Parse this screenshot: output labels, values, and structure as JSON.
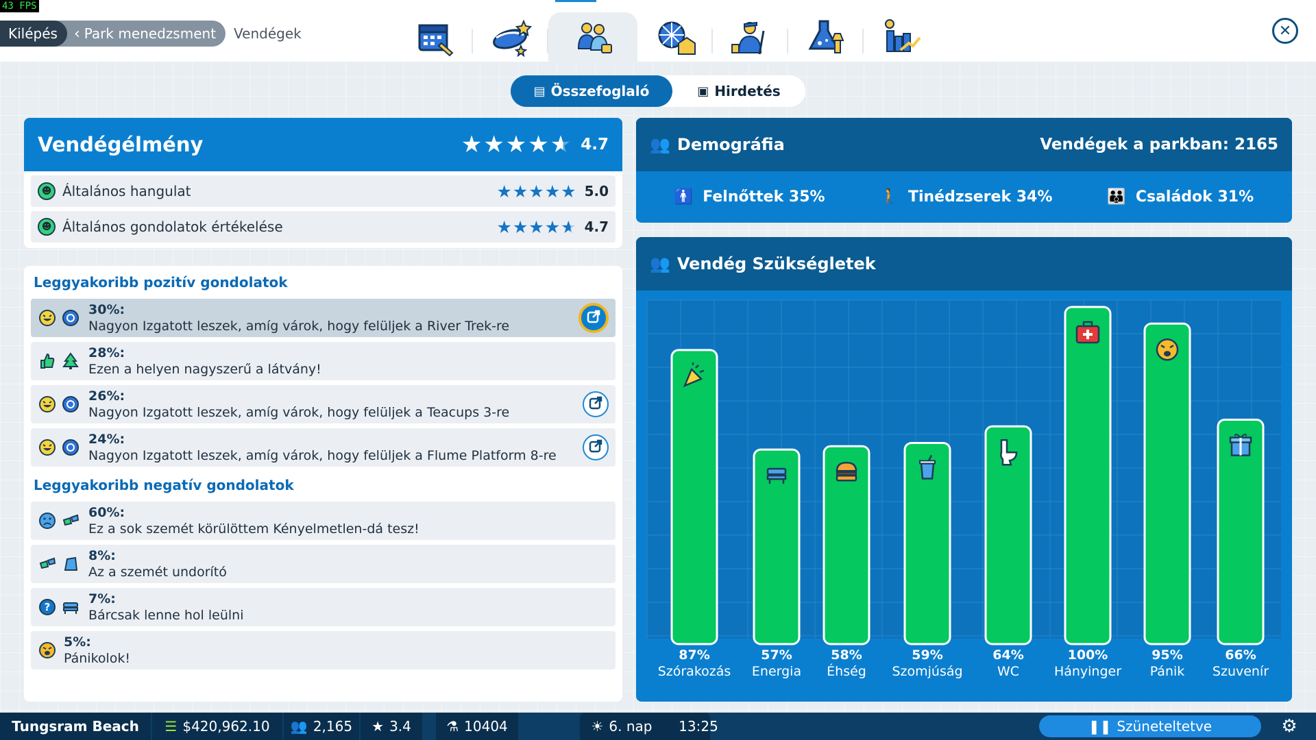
{
  "fps": "43 FPS",
  "breadcrumb": {
    "exit": "Kilépés",
    "park": "Park menedzsment",
    "current": "Vendégek"
  },
  "tabs": [
    {
      "icon": "calendar-icon"
    },
    {
      "icon": "ride-icon"
    },
    {
      "icon": "guests-icon",
      "active": true
    },
    {
      "icon": "ferris-wheel-icon"
    },
    {
      "icon": "staff-icon"
    },
    {
      "icon": "research-icon"
    },
    {
      "icon": "stats-icon"
    }
  ],
  "segment": {
    "summary": "Összefoglaló",
    "ads": "Hirdetés"
  },
  "experience": {
    "title": "Vendégélmény",
    "rating": "4.7",
    "rows": [
      {
        "label": "Általános hangulat",
        "rating": "5.0",
        "stars": 5.0
      },
      {
        "label": "Általános gondolatok értékelése",
        "rating": "4.7",
        "stars": 4.7
      }
    ]
  },
  "thoughts": {
    "positive_title": "Leggyakoribb pozitív gondolatok",
    "negative_title": "Leggyakoribb negatív gondolatok",
    "positive": [
      {
        "pct": "30%:",
        "text": "Nagyon Izgatott leszek, amíg várok, hogy felüljek a River Trek-re",
        "icons": [
          "excited-face-icon",
          "ride-badge-icon"
        ],
        "link": true,
        "selected": true
      },
      {
        "pct": "28%:",
        "text": "Ezen a helyen nagyszerű a látvány!",
        "icons": [
          "thumbs-up-icon",
          "tree-icon"
        ],
        "link": false
      },
      {
        "pct": "26%:",
        "text": "Nagyon Izgatott leszek, amíg várok, hogy felüljek a Teacups 3-re",
        "icons": [
          "excited-face-icon",
          "ride-badge-icon"
        ],
        "link": true
      },
      {
        "pct": "24%:",
        "text": "Nagyon Izgatott leszek, amíg várok, hogy felüljek a Flume Platform 8-re",
        "icons": [
          "excited-face-icon",
          "ride-badge-icon"
        ],
        "link": true
      }
    ],
    "negative": [
      {
        "pct": "60%:",
        "text": "Ez a sok szemét körülöttem Kényelmetlen-dá tesz!",
        "icons": [
          "sad-face-icon",
          "litter-icon"
        ]
      },
      {
        "pct": "8%:",
        "text": "Az a szemét undorító",
        "icons": [
          "litter-icon",
          "trash-bag-icon"
        ]
      },
      {
        "pct": "7%:",
        "text": "Bárcsak lenne hol leülni",
        "icons": [
          "question-icon",
          "bench-icon"
        ]
      },
      {
        "pct": "5%:",
        "text": "Pánikolok!",
        "icons": [
          "panic-face-icon"
        ]
      }
    ]
  },
  "demography": {
    "title": "Demográfia",
    "guests_in_park": "Vendégek a parkban: 2165",
    "groups": [
      {
        "label": "Felnőttek",
        "pct": "35%"
      },
      {
        "label": "Tinédzserek",
        "pct": "34%"
      },
      {
        "label": "Családok",
        "pct": "31%"
      }
    ]
  },
  "chart_data": {
    "type": "bar",
    "title": "Vendég Szükségletek",
    "categories": [
      "Szórakozás",
      "Energia",
      "Éhség",
      "Szomjúság",
      "WC",
      "Hányinger",
      "Pánik",
      "Szuvenír"
    ],
    "values": [
      87,
      57,
      58,
      59,
      64,
      100,
      95,
      66
    ],
    "value_labels": [
      "87%",
      "57%",
      "58%",
      "59%",
      "64%",
      "100%",
      "95%",
      "66%"
    ],
    "icons": [
      "party-popper-icon",
      "bench-icon",
      "burger-icon",
      "drink-cup-icon",
      "toilet-icon",
      "first-aid-icon",
      "panic-face-icon",
      "gift-icon"
    ],
    "ylim": [
      0,
      100
    ],
    "bar_color": "#05c85f",
    "grid": true
  },
  "bottombar": {
    "park_name": "Tungsram Beach",
    "money": "$420,962.10",
    "guests": "2,165",
    "rating": "3.4",
    "research": "10404",
    "day": "6. nap",
    "time": "13:25",
    "pause": "Szüneteltetve"
  }
}
